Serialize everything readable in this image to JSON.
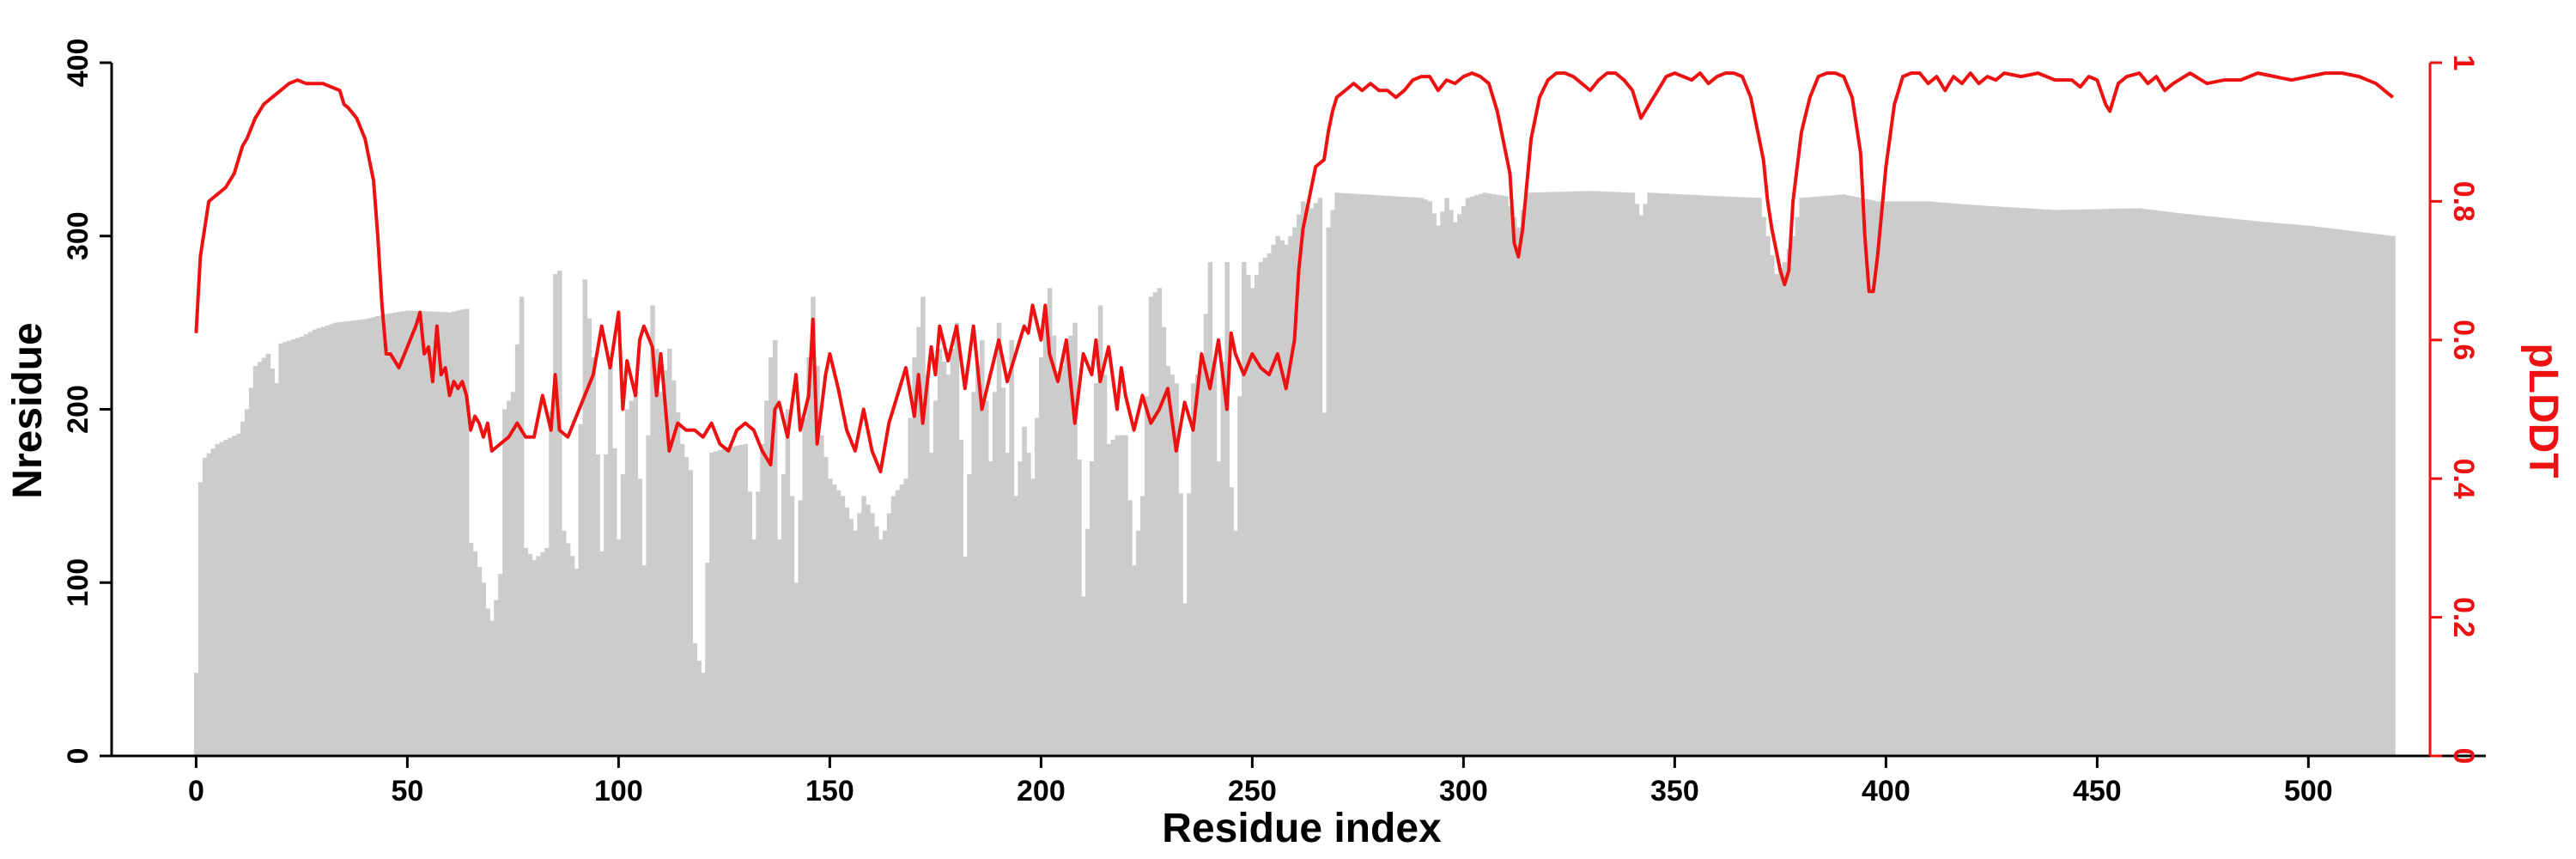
{
  "chart_data": {
    "type": "bar+line",
    "xlabel": "Residue index",
    "ylabel": "Nresidue",
    "y2label": "pLDDT",
    "xlim": [
      -20,
      542
    ],
    "xticks": [
      0,
      50,
      100,
      150,
      200,
      250,
      300,
      350,
      400,
      450,
      500
    ],
    "ylim": [
      0,
      400
    ],
    "yticks": [
      0,
      100,
      200,
      300,
      400
    ],
    "y2lim": [
      0,
      1
    ],
    "y2ticks": [
      0,
      0.2,
      0.4,
      0.6,
      0.8,
      1
    ],
    "y2ticklabels": [
      "0",
      "0.2",
      "0.4",
      "0.6",
      "0.8",
      "1"
    ],
    "grid": false,
    "colors": {
      "bars": "#cccccc",
      "line": "#ee1111",
      "axis": "#000000",
      "secondary_axis": "#ee1111"
    },
    "bar_anchors": [
      [
        0,
        48
      ],
      [
        1,
        158
      ],
      [
        2,
        172
      ],
      [
        5,
        180
      ],
      [
        10,
        186
      ],
      [
        12,
        200
      ],
      [
        14,
        225
      ],
      [
        17,
        232
      ],
      [
        19,
        215
      ],
      [
        20,
        238
      ],
      [
        25,
        242
      ],
      [
        28,
        246
      ],
      [
        33,
        250
      ],
      [
        40,
        252
      ],
      [
        45,
        255
      ],
      [
        50,
        257
      ],
      [
        60,
        256
      ],
      [
        64,
        258
      ],
      [
        65,
        123
      ],
      [
        66,
        118
      ],
      [
        68,
        100
      ],
      [
        69,
        85
      ],
      [
        70,
        78
      ],
      [
        71,
        90
      ],
      [
        72,
        105
      ],
      [
        73,
        200
      ],
      [
        75,
        210
      ],
      [
        77,
        265
      ],
      [
        78,
        120
      ],
      [
        80,
        113
      ],
      [
        83,
        120
      ],
      [
        85,
        278
      ],
      [
        86,
        280
      ],
      [
        87,
        130
      ],
      [
        90,
        108
      ],
      [
        92,
        275
      ],
      [
        94,
        230
      ],
      [
        96,
        118
      ],
      [
        98,
        230
      ],
      [
        100,
        125
      ],
      [
        102,
        200
      ],
      [
        104,
        210
      ],
      [
        106,
        110
      ],
      [
        108,
        260
      ],
      [
        110,
        210
      ],
      [
        112,
        235
      ],
      [
        115,
        180
      ],
      [
        117,
        165
      ],
      [
        118,
        65
      ],
      [
        119,
        55
      ],
      [
        120,
        48
      ],
      [
        122,
        175
      ],
      [
        126,
        178
      ],
      [
        130,
        180
      ],
      [
        132,
        125
      ],
      [
        134,
        180
      ],
      [
        136,
        230
      ],
      [
        137,
        240
      ],
      [
        138,
        125
      ],
      [
        140,
        200
      ],
      [
        142,
        100
      ],
      [
        144,
        195
      ],
      [
        146,
        265
      ],
      [
        147,
        225
      ],
      [
        148,
        185
      ],
      [
        150,
        160
      ],
      [
        153,
        150
      ],
      [
        156,
        130
      ],
      [
        158,
        150
      ],
      [
        160,
        140
      ],
      [
        162,
        125
      ],
      [
        163,
        130
      ],
      [
        165,
        150
      ],
      [
        168,
        160
      ],
      [
        170,
        230
      ],
      [
        172,
        265
      ],
      [
        174,
        175
      ],
      [
        176,
        235
      ],
      [
        178,
        220
      ],
      [
        180,
        250
      ],
      [
        182,
        115
      ],
      [
        184,
        210
      ],
      [
        186,
        240
      ],
      [
        188,
        170
      ],
      [
        190,
        250
      ],
      [
        192,
        175
      ],
      [
        193,
        240
      ],
      [
        194,
        150
      ],
      [
        196,
        190
      ],
      [
        198,
        160
      ],
      [
        200,
        230
      ],
      [
        202,
        270
      ],
      [
        204,
        215
      ],
      [
        206,
        235
      ],
      [
        208,
        250
      ],
      [
        210,
        92
      ],
      [
        212,
        170
      ],
      [
        214,
        260
      ],
      [
        216,
        180
      ],
      [
        218,
        185
      ],
      [
        220,
        185
      ],
      [
        222,
        110
      ],
      [
        224,
        150
      ],
      [
        226,
        265
      ],
      [
        228,
        270
      ],
      [
        230,
        225
      ],
      [
        232,
        215
      ],
      [
        234,
        88
      ],
      [
        236,
        215
      ],
      [
        238,
        225
      ],
      [
        240,
        285
      ],
      [
        242,
        170
      ],
      [
        244,
        285
      ],
      [
        245,
        155
      ],
      [
        246,
        130
      ],
      [
        248,
        285
      ],
      [
        250,
        270
      ],
      [
        252,
        285
      ],
      [
        254,
        290
      ],
      [
        256,
        300
      ],
      [
        258,
        295
      ],
      [
        260,
        305
      ],
      [
        262,
        320
      ],
      [
        264,
        316
      ],
      [
        266,
        322
      ],
      [
        267,
        198
      ],
      [
        268,
        305
      ],
      [
        270,
        325
      ],
      [
        290,
        322
      ],
      [
        292,
        320
      ],
      [
        294,
        306
      ],
      [
        296,
        322
      ],
      [
        298,
        308
      ],
      [
        301,
        322
      ],
      [
        305,
        325
      ],
      [
        310,
        323
      ],
      [
        313,
        305
      ],
      [
        315,
        325
      ],
      [
        330,
        326
      ],
      [
        340,
        325
      ],
      [
        342,
        312
      ],
      [
        344,
        325
      ],
      [
        360,
        323
      ],
      [
        370,
        322
      ],
      [
        372,
        300
      ],
      [
        374,
        278
      ],
      [
        376,
        285
      ],
      [
        378,
        300
      ],
      [
        380,
        322
      ],
      [
        390,
        324
      ],
      [
        398,
        320
      ],
      [
        410,
        320
      ],
      [
        420,
        318
      ],
      [
        440,
        315
      ],
      [
        460,
        316
      ],
      [
        470,
        313
      ],
      [
        490,
        308
      ],
      [
        500,
        306
      ],
      [
        510,
        303
      ],
      [
        520,
        300
      ]
    ],
    "plddt_anchors": [
      [
        0,
        0.61
      ],
      [
        1,
        0.72
      ],
      [
        2,
        0.76
      ],
      [
        3,
        0.8
      ],
      [
        5,
        0.81
      ],
      [
        7,
        0.82
      ],
      [
        9,
        0.84
      ],
      [
        10,
        0.86
      ],
      [
        11,
        0.88
      ],
      [
        12,
        0.89
      ],
      [
        14,
        0.92
      ],
      [
        16,
        0.94
      ],
      [
        18,
        0.95
      ],
      [
        20,
        0.96
      ],
      [
        22,
        0.97
      ],
      [
        24,
        0.975
      ],
      [
        26,
        0.97
      ],
      [
        28,
        0.97
      ],
      [
        30,
        0.97
      ],
      [
        32,
        0.965
      ],
      [
        34,
        0.96
      ],
      [
        35,
        0.94
      ],
      [
        36,
        0.935
      ],
      [
        38,
        0.92
      ],
      [
        40,
        0.89
      ],
      [
        42,
        0.83
      ],
      [
        43,
        0.75
      ],
      [
        44,
        0.65
      ],
      [
        45,
        0.58
      ],
      [
        46,
        0.58
      ],
      [
        48,
        0.56
      ],
      [
        50,
        0.59
      ],
      [
        52,
        0.62
      ],
      [
        53,
        0.64
      ],
      [
        54,
        0.58
      ],
      [
        55,
        0.59
      ],
      [
        56,
        0.54
      ],
      [
        57,
        0.62
      ],
      [
        58,
        0.55
      ],
      [
        59,
        0.56
      ],
      [
        60,
        0.52
      ],
      [
        61,
        0.54
      ],
      [
        62,
        0.53
      ],
      [
        63,
        0.54
      ],
      [
        64,
        0.52
      ],
      [
        65,
        0.47
      ],
      [
        66,
        0.49
      ],
      [
        67,
        0.48
      ],
      [
        68,
        0.46
      ],
      [
        69,
        0.48
      ],
      [
        70,
        0.44
      ],
      [
        72,
        0.45
      ],
      [
        74,
        0.46
      ],
      [
        76,
        0.48
      ],
      [
        78,
        0.46
      ],
      [
        80,
        0.46
      ],
      [
        82,
        0.52
      ],
      [
        84,
        0.47
      ],
      [
        85,
        0.55
      ],
      [
        86,
        0.47
      ],
      [
        88,
        0.46
      ],
      [
        90,
        0.49
      ],
      [
        92,
        0.52
      ],
      [
        94,
        0.55
      ],
      [
        96,
        0.62
      ],
      [
        98,
        0.56
      ],
      [
        100,
        0.64
      ],
      [
        101,
        0.5
      ],
      [
        102,
        0.57
      ],
      [
        104,
        0.52
      ],
      [
        105,
        0.6
      ],
      [
        106,
        0.62
      ],
      [
        108,
        0.59
      ],
      [
        109,
        0.52
      ],
      [
        110,
        0.58
      ],
      [
        112,
        0.44
      ],
      [
        114,
        0.48
      ],
      [
        116,
        0.47
      ],
      [
        118,
        0.47
      ],
      [
        120,
        0.46
      ],
      [
        122,
        0.48
      ],
      [
        124,
        0.45
      ],
      [
        126,
        0.44
      ],
      [
        128,
        0.47
      ],
      [
        130,
        0.48
      ],
      [
        132,
        0.47
      ],
      [
        134,
        0.44
      ],
      [
        136,
        0.42
      ],
      [
        137,
        0.5
      ],
      [
        138,
        0.51
      ],
      [
        140,
        0.46
      ],
      [
        142,
        0.55
      ],
      [
        143,
        0.47
      ],
      [
        145,
        0.52
      ],
      [
        146,
        0.63
      ],
      [
        147,
        0.45
      ],
      [
        149,
        0.55
      ],
      [
        150,
        0.58
      ],
      [
        152,
        0.53
      ],
      [
        154,
        0.47
      ],
      [
        156,
        0.44
      ],
      [
        158,
        0.5
      ],
      [
        160,
        0.44
      ],
      [
        162,
        0.41
      ],
      [
        164,
        0.48
      ],
      [
        166,
        0.52
      ],
      [
        168,
        0.56
      ],
      [
        170,
        0.49
      ],
      [
        171,
        0.55
      ],
      [
        172,
        0.48
      ],
      [
        174,
        0.59
      ],
      [
        175,
        0.55
      ],
      [
        176,
        0.62
      ],
      [
        178,
        0.57
      ],
      [
        180,
        0.62
      ],
      [
        182,
        0.53
      ],
      [
        184,
        0.62
      ],
      [
        186,
        0.5
      ],
      [
        188,
        0.55
      ],
      [
        190,
        0.6
      ],
      [
        192,
        0.54
      ],
      [
        194,
        0.58
      ],
      [
        196,
        0.62
      ],
      [
        197,
        0.61
      ],
      [
        198,
        0.65
      ],
      [
        200,
        0.6
      ],
      [
        201,
        0.65
      ],
      [
        202,
        0.58
      ],
      [
        204,
        0.54
      ],
      [
        206,
        0.6
      ],
      [
        208,
        0.48
      ],
      [
        210,
        0.58
      ],
      [
        212,
        0.55
      ],
      [
        213,
        0.6
      ],
      [
        214,
        0.54
      ],
      [
        216,
        0.59
      ],
      [
        218,
        0.5
      ],
      [
        219,
        0.56
      ],
      [
        220,
        0.52
      ],
      [
        222,
        0.47
      ],
      [
        224,
        0.52
      ],
      [
        226,
        0.48
      ],
      [
        228,
        0.5
      ],
      [
        230,
        0.53
      ],
      [
        232,
        0.44
      ],
      [
        234,
        0.51
      ],
      [
        236,
        0.47
      ],
      [
        238,
        0.58
      ],
      [
        240,
        0.53
      ],
      [
        242,
        0.6
      ],
      [
        244,
        0.5
      ],
      [
        245,
        0.61
      ],
      [
        246,
        0.58
      ],
      [
        248,
        0.55
      ],
      [
        250,
        0.58
      ],
      [
        252,
        0.56
      ],
      [
        254,
        0.55
      ],
      [
        256,
        0.58
      ],
      [
        258,
        0.53
      ],
      [
        260,
        0.6
      ],
      [
        261,
        0.7
      ],
      [
        262,
        0.76
      ],
      [
        263,
        0.79
      ],
      [
        264,
        0.82
      ],
      [
        265,
        0.85
      ],
      [
        267,
        0.86
      ],
      [
        268,
        0.9
      ],
      [
        269,
        0.93
      ],
      [
        270,
        0.95
      ],
      [
        272,
        0.96
      ],
      [
        274,
        0.97
      ],
      [
        276,
        0.96
      ],
      [
        278,
        0.97
      ],
      [
        280,
        0.96
      ],
      [
        282,
        0.96
      ],
      [
        284,
        0.95
      ],
      [
        286,
        0.96
      ],
      [
        288,
        0.975
      ],
      [
        290,
        0.98
      ],
      [
        292,
        0.98
      ],
      [
        294,
        0.96
      ],
      [
        296,
        0.975
      ],
      [
        298,
        0.97
      ],
      [
        300,
        0.98
      ],
      [
        302,
        0.985
      ],
      [
        304,
        0.98
      ],
      [
        306,
        0.97
      ],
      [
        308,
        0.93
      ],
      [
        310,
        0.87
      ],
      [
        311,
        0.84
      ],
      [
        312,
        0.74
      ],
      [
        313,
        0.72
      ],
      [
        314,
        0.76
      ],
      [
        316,
        0.89
      ],
      [
        318,
        0.95
      ],
      [
        320,
        0.975
      ],
      [
        322,
        0.985
      ],
      [
        324,
        0.985
      ],
      [
        326,
        0.98
      ],
      [
        328,
        0.97
      ],
      [
        330,
        0.96
      ],
      [
        332,
        0.975
      ],
      [
        334,
        0.985
      ],
      [
        336,
        0.985
      ],
      [
        338,
        0.975
      ],
      [
        340,
        0.96
      ],
      [
        341,
        0.94
      ],
      [
        342,
        0.92
      ],
      [
        344,
        0.94
      ],
      [
        346,
        0.96
      ],
      [
        348,
        0.98
      ],
      [
        350,
        0.985
      ],
      [
        352,
        0.98
      ],
      [
        354,
        0.975
      ],
      [
        356,
        0.985
      ],
      [
        358,
        0.97
      ],
      [
        360,
        0.98
      ],
      [
        362,
        0.985
      ],
      [
        364,
        0.985
      ],
      [
        366,
        0.98
      ],
      [
        368,
        0.95
      ],
      [
        370,
        0.89
      ],
      [
        371,
        0.86
      ],
      [
        372,
        0.8
      ],
      [
        373,
        0.76
      ],
      [
        375,
        0.7
      ],
      [
        376,
        0.68
      ],
      [
        377,
        0.7
      ],
      [
        378,
        0.8
      ],
      [
        380,
        0.9
      ],
      [
        382,
        0.95
      ],
      [
        384,
        0.98
      ],
      [
        386,
        0.985
      ],
      [
        388,
        0.985
      ],
      [
        390,
        0.98
      ],
      [
        392,
        0.95
      ],
      [
        394,
        0.87
      ],
      [
        395,
        0.75
      ],
      [
        396,
        0.67
      ],
      [
        397,
        0.67
      ],
      [
        398,
        0.72
      ],
      [
        400,
        0.85
      ],
      [
        402,
        0.94
      ],
      [
        404,
        0.98
      ],
      [
        406,
        0.985
      ],
      [
        408,
        0.985
      ],
      [
        410,
        0.97
      ],
      [
        412,
        0.98
      ],
      [
        414,
        0.96
      ],
      [
        416,
        0.98
      ],
      [
        418,
        0.97
      ],
      [
        420,
        0.985
      ],
      [
        422,
        0.97
      ],
      [
        424,
        0.98
      ],
      [
        426,
        0.975
      ],
      [
        428,
        0.985
      ],
      [
        432,
        0.98
      ],
      [
        436,
        0.985
      ],
      [
        440,
        0.975
      ],
      [
        444,
        0.975
      ],
      [
        446,
        0.965
      ],
      [
        448,
        0.98
      ],
      [
        450,
        0.975
      ],
      [
        452,
        0.94
      ],
      [
        453,
        0.93
      ],
      [
        455,
        0.97
      ],
      [
        457,
        0.98
      ],
      [
        460,
        0.985
      ],
      [
        462,
        0.97
      ],
      [
        464,
        0.98
      ],
      [
        466,
        0.96
      ],
      [
        468,
        0.97
      ],
      [
        472,
        0.985
      ],
      [
        476,
        0.97
      ],
      [
        480,
        0.975
      ],
      [
        484,
        0.975
      ],
      [
        488,
        0.985
      ],
      [
        492,
        0.98
      ],
      [
        496,
        0.975
      ],
      [
        500,
        0.98
      ],
      [
        504,
        0.985
      ],
      [
        508,
        0.985
      ],
      [
        512,
        0.98
      ],
      [
        516,
        0.97
      ],
      [
        518,
        0.96
      ],
      [
        520,
        0.95
      ]
    ]
  }
}
